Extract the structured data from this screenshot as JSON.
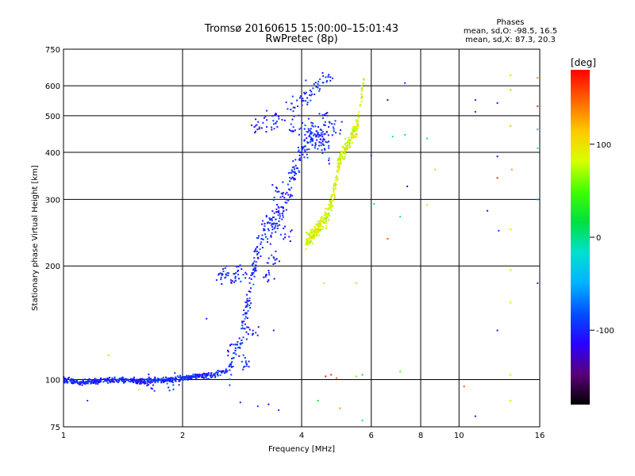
{
  "chart_data": {
    "type": "scatter",
    "title": "Tromsø 20160615 15:00:00–15:01:43",
    "subtitle": "RwPretec (8p)",
    "stats": {
      "heading": "Phases",
      "line1": "mean, sd,O: -98.5, 16.5",
      "line2": "mean, sd,X:  87.3, 20.3"
    },
    "xlabel": "Frequency [MHz]",
    "ylabel": "Stationary phase Virtual Height [km]",
    "xscale": "log",
    "yscale": "log",
    "xlim": [
      1,
      16
    ],
    "ylim": [
      75,
      750
    ],
    "xticks": [
      1,
      2,
      4,
      6,
      8,
      10,
      16
    ],
    "yticks": [
      75,
      100,
      200,
      300,
      400,
      500,
      600,
      750
    ],
    "grid": true,
    "colorbar": {
      "label": "[deg]",
      "range": [
        -180,
        180
      ],
      "ticks": [
        100,
        0,
        -100
      ],
      "colormap": [
        "#000000",
        "#5a007a",
        "#2a00ff",
        "#0050ff",
        "#00b4ff",
        "#00e0d0",
        "#00e040",
        "#40ff00",
        "#d8ff00",
        "#ffc800",
        "#ff6400",
        "#ff0000"
      ]
    },
    "series": [
      {
        "mode": "O",
        "phase_mean": -98.5,
        "phase_sd": 16.5,
        "trace": [
          [
            1.0,
            100
          ],
          [
            1.1,
            98
          ],
          [
            1.2,
            99
          ],
          [
            1.4,
            100
          ],
          [
            1.6,
            99
          ],
          [
            1.8,
            100
          ],
          [
            2.0,
            101
          ],
          [
            2.2,
            102
          ],
          [
            2.4,
            103
          ],
          [
            2.6,
            106
          ],
          [
            2.7,
            115
          ],
          [
            2.8,
            125
          ],
          [
            2.9,
            150
          ],
          [
            3.0,
            185
          ],
          [
            3.1,
            215
          ],
          [
            3.2,
            240
          ],
          [
            3.3,
            255
          ],
          [
            3.4,
            262
          ],
          [
            3.5,
            272
          ],
          [
            3.6,
            290
          ],
          [
            3.7,
            320
          ],
          [
            3.8,
            345
          ],
          [
            3.9,
            375
          ],
          [
            4.0,
            405
          ],
          [
            4.1,
            435
          ],
          [
            4.3,
            450
          ],
          [
            4.5,
            430
          ],
          [
            4.7,
            415
          ]
        ],
        "extra": [
          [
            2.5,
            190
          ],
          [
            2.6,
            188
          ],
          [
            2.75,
            190
          ],
          [
            2.8,
            192
          ],
          [
            3.1,
            470
          ],
          [
            3.3,
            480
          ],
          [
            3.5,
            485
          ],
          [
            3.8,
            520
          ],
          [
            4.0,
            550
          ],
          [
            4.2,
            560
          ],
          [
            4.4,
            600
          ],
          [
            4.6,
            630
          ],
          [
            3.5,
            310
          ],
          [
            3.6,
            240
          ],
          [
            3.3,
            190
          ],
          [
            3.4,
            205
          ],
          [
            2.9,
            110
          ],
          [
            3.0,
            130
          ],
          [
            1.65,
            97
          ],
          [
            1.9,
            99
          ],
          [
            3.9,
            460
          ],
          [
            4.8,
            470
          ],
          [
            4.6,
            490
          ]
        ]
      },
      {
        "mode": "X",
        "phase_mean": 87.3,
        "phase_sd": 20.3,
        "trace": [
          [
            4.1,
            232
          ],
          [
            4.25,
            240
          ],
          [
            4.4,
            250
          ],
          [
            4.55,
            262
          ],
          [
            4.7,
            282
          ],
          [
            4.8,
            305
          ],
          [
            4.9,
            335
          ],
          [
            4.95,
            370
          ],
          [
            5.1,
            405
          ],
          [
            5.3,
            430
          ],
          [
            5.5,
            460
          ],
          [
            5.6,
            500
          ],
          [
            5.65,
            545
          ],
          [
            5.7,
            600
          ],
          [
            5.75,
            640
          ]
        ]
      }
    ],
    "scattered": [
      {
        "f": 1.3,
        "h": 116,
        "phase": 110
      },
      {
        "f": 1.15,
        "h": 88,
        "phase": -90
      },
      {
        "f": 1.55,
        "h": 94,
        "phase": 100
      },
      {
        "f": 2.3,
        "h": 145,
        "phase": -110
      },
      {
        "f": 2.8,
        "h": 87,
        "phase": -100
      },
      {
        "f": 3.1,
        "h": 85,
        "phase": -90
      },
      {
        "f": 3.3,
        "h": 86,
        "phase": -120
      },
      {
        "f": 3.5,
        "h": 83,
        "phase": -90
      },
      {
        "f": 3.4,
        "h": 135,
        "phase": -100
      },
      {
        "f": 4.4,
        "h": 88,
        "phase": 20
      },
      {
        "f": 4.6,
        "h": 102,
        "phase": 170
      },
      {
        "f": 4.75,
        "h": 103,
        "phase": 165
      },
      {
        "f": 4.9,
        "h": 101,
        "phase": 150
      },
      {
        "f": 5.0,
        "h": 84,
        "phase": 130
      },
      {
        "f": 5.5,
        "h": 102,
        "phase": 60
      },
      {
        "f": 5.7,
        "h": 103,
        "phase": 10
      },
      {
        "f": 4.55,
        "h": 180,
        "phase": 100
      },
      {
        "f": 5.5,
        "h": 180,
        "phase": 110
      },
      {
        "f": 4.1,
        "h": 620,
        "phase": -100
      },
      {
        "f": 5.7,
        "h": 78,
        "phase": -20
      },
      {
        "f": 6.0,
        "h": 392,
        "phase": -100
      },
      {
        "f": 6.1,
        "h": 292,
        "phase": 0
      },
      {
        "f": 6.6,
        "h": 236,
        "phase": 150
      },
      {
        "f": 6.6,
        "h": 550,
        "phase": -140
      },
      {
        "f": 6.8,
        "h": 440,
        "phase": -20
      },
      {
        "f": 7.1,
        "h": 270,
        "phase": -20
      },
      {
        "f": 7.1,
        "h": 105,
        "phase": 50
      },
      {
        "f": 7.3,
        "h": 610,
        "phase": -100
      },
      {
        "f": 7.3,
        "h": 445,
        "phase": -10
      },
      {
        "f": 7.4,
        "h": 325,
        "phase": -110
      },
      {
        "f": 8.3,
        "h": 435,
        "phase": -20
      },
      {
        "f": 8.7,
        "h": 360,
        "phase": 110
      },
      {
        "f": 8.3,
        "h": 290,
        "phase": 100
      },
      {
        "f": 10.3,
        "h": 96,
        "phase": 150
      },
      {
        "f": 11.0,
        "h": 550,
        "phase": -100
      },
      {
        "f": 11.0,
        "h": 512,
        "phase": -100
      },
      {
        "f": 11.0,
        "h": 80,
        "phase": -130
      },
      {
        "f": 11.8,
        "h": 280,
        "phase": -110
      },
      {
        "f": 12.5,
        "h": 540,
        "phase": -100
      },
      {
        "f": 12.5,
        "h": 390,
        "phase": -110
      },
      {
        "f": 12.5,
        "h": 342,
        "phase": 170
      },
      {
        "f": 12.6,
        "h": 248,
        "phase": -100
      },
      {
        "f": 12.5,
        "h": 135,
        "phase": -110
      },
      {
        "f": 13.5,
        "h": 640,
        "phase": 110
      },
      {
        "f": 13.5,
        "h": 585,
        "phase": 120
      },
      {
        "f": 13.5,
        "h": 470,
        "phase": 120
      },
      {
        "f": 13.6,
        "h": 360,
        "phase": 130
      },
      {
        "f": 13.5,
        "h": 250,
        "phase": 100
      },
      {
        "f": 13.5,
        "h": 195,
        "phase": 110
      },
      {
        "f": 13.5,
        "h": 160,
        "phase": 100
      },
      {
        "f": 13.5,
        "h": 103,
        "phase": 100
      },
      {
        "f": 13.5,
        "h": 88,
        "phase": 100
      },
      {
        "f": 15.8,
        "h": 630,
        "phase": 130
      },
      {
        "f": 15.8,
        "h": 530,
        "phase": 170
      },
      {
        "f": 15.8,
        "h": 460,
        "phase": -40
      },
      {
        "f": 15.8,
        "h": 410,
        "phase": -20
      },
      {
        "f": 15.8,
        "h": 300,
        "phase": -60
      },
      {
        "f": 15.8,
        "h": 180,
        "phase": -90
      }
    ]
  }
}
